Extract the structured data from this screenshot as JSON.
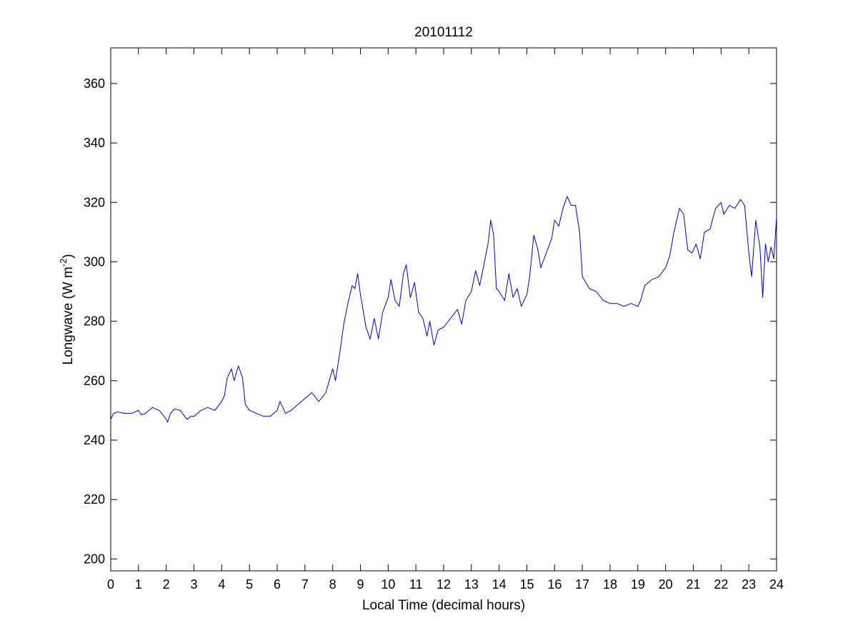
{
  "chart_data": {
    "type": "line",
    "title": "20101112",
    "xlabel": "Local Time (decimal hours)",
    "ylabel": {
      "prefix": "Longwave (W m",
      "superscript": "-2",
      "suffix": ")"
    },
    "xlim": [
      0,
      24
    ],
    "ylim": [
      196,
      372
    ],
    "xticks": [
      0,
      1,
      2,
      3,
      4,
      5,
      6,
      7,
      8,
      9,
      10,
      11,
      12,
      13,
      14,
      15,
      16,
      17,
      18,
      19,
      20,
      21,
      22,
      23,
      24
    ],
    "yticks": [
      200,
      220,
      240,
      260,
      280,
      300,
      320,
      340,
      360
    ],
    "grid": false,
    "series": [
      {
        "color": "#0000cc",
        "x": [
          0,
          0.1,
          0.25,
          0.5,
          0.75,
          1.0,
          1.1,
          1.25,
          1.5,
          1.75,
          2.0,
          2.05,
          2.15,
          2.3,
          2.5,
          2.75,
          2.9,
          3.0,
          3.25,
          3.5,
          3.75,
          4.0,
          4.1,
          4.2,
          4.35,
          4.45,
          4.6,
          4.75,
          4.85,
          5.0,
          5.25,
          5.5,
          5.75,
          6.0,
          6.1,
          6.3,
          6.5,
          6.75,
          7.0,
          7.25,
          7.5,
          7.75,
          8.0,
          8.1,
          8.25,
          8.4,
          8.55,
          8.7,
          8.8,
          8.9,
          9.0,
          9.2,
          9.35,
          9.5,
          9.65,
          9.8,
          10.0,
          10.1,
          10.25,
          10.4,
          10.55,
          10.65,
          10.8,
          10.95,
          11.1,
          11.25,
          11.4,
          11.5,
          11.65,
          11.8,
          12.0,
          12.25,
          12.5,
          12.65,
          12.8,
          13.0,
          13.15,
          13.3,
          13.45,
          13.6,
          13.7,
          13.8,
          13.9,
          14.0,
          14.2,
          14.35,
          14.5,
          14.65,
          14.8,
          15.0,
          15.1,
          15.25,
          15.4,
          15.5,
          15.7,
          15.9,
          16.0,
          16.15,
          16.3,
          16.45,
          16.6,
          16.75,
          16.9,
          17.0,
          17.25,
          17.5,
          17.75,
          18.0,
          18.25,
          18.5,
          18.75,
          19.0,
          19.1,
          19.25,
          19.5,
          19.75,
          20.0,
          20.15,
          20.3,
          20.5,
          20.65,
          20.8,
          20.95,
          21.1,
          21.25,
          21.4,
          21.6,
          21.8,
          22.0,
          22.1,
          22.3,
          22.5,
          22.7,
          22.85,
          23.0,
          23.1,
          23.25,
          23.4,
          23.5,
          23.6,
          23.7,
          23.8,
          23.9,
          24.0
        ],
        "y": [
          247,
          249,
          249.5,
          249,
          249,
          250,
          248.5,
          249,
          251,
          250,
          247,
          246,
          249,
          250.5,
          250,
          247,
          248,
          248,
          250,
          251,
          250,
          253,
          255,
          261,
          264,
          260,
          265,
          261,
          252,
          250,
          249,
          248,
          248,
          250,
          253,
          249,
          250,
          252,
          254,
          256,
          253,
          256,
          264,
          260,
          269,
          279,
          286,
          292,
          291,
          296,
          289,
          278,
          274,
          281,
          274,
          283,
          288,
          294,
          287,
          285,
          296,
          299,
          288,
          293,
          283,
          281,
          275,
          280,
          272,
          277,
          278,
          281,
          284,
          279,
          287,
          290,
          297,
          292,
          299,
          306,
          314,
          309,
          291,
          290,
          287,
          296,
          288,
          291,
          285,
          289,
          295,
          309,
          304,
          298,
          303,
          308,
          314,
          312,
          318,
          322,
          319,
          319,
          310,
          295,
          291,
          290,
          287,
          286,
          286,
          285,
          286,
          285,
          287,
          292,
          294,
          295,
          298,
          302,
          310,
          318,
          316,
          304,
          303,
          306,
          301,
          310,
          311,
          318,
          320,
          316,
          319,
          318,
          321,
          319,
          303,
          295,
          314,
          305,
          288,
          306,
          300,
          305,
          301,
          315
        ]
      }
    ]
  }
}
